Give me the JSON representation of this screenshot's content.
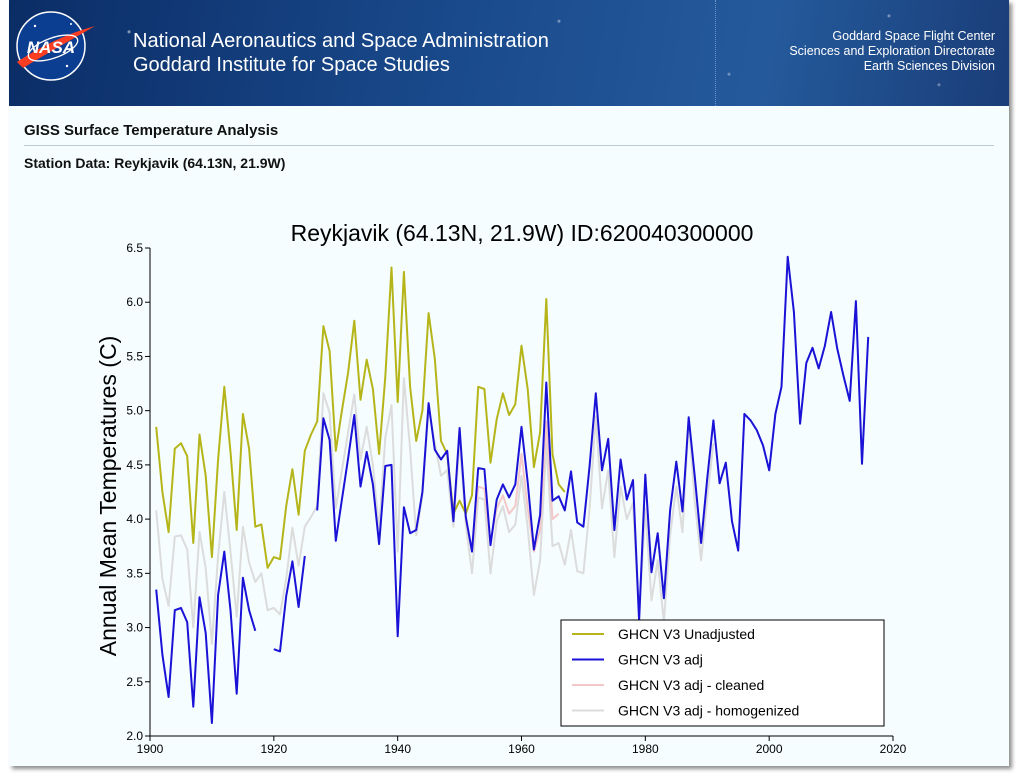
{
  "header": {
    "agency_line1": "National Aeronautics and Space Administration",
    "agency_line2": "Goddard Institute for Space Studies",
    "center_line1": "Goddard Space Flight Center",
    "center_line2": "Sciences and Exploration Directorate",
    "center_line3": "Earth Sciences Division",
    "logo_text": "NASA"
  },
  "page": {
    "title": "GISS Surface Temperature Analysis",
    "station_label": "Station Data: Reykjavik (64.13N, 21.9W)"
  },
  "colors": {
    "unadjusted": "#b5b51a",
    "adj": "#1a12d6",
    "cleaned": "#f4c8c8",
    "homogenized": "#dcdcdc"
  },
  "chart_data": {
    "type": "line",
    "title": "Reykjavik (64.13N, 21.9W) ID:620040300000",
    "ylabel": "Annual Mean Temperatures (C)",
    "xlabel": "",
    "xlim": [
      1900,
      2020
    ],
    "ylim": [
      2.0,
      6.5
    ],
    "xticks": [
      1900,
      1920,
      1940,
      1960,
      1980,
      2000,
      2020
    ],
    "yticks": [
      2.0,
      2.5,
      3.0,
      3.5,
      4.0,
      4.5,
      5.0,
      5.5,
      6.0,
      6.5
    ],
    "xtick_labels": [
      "1900",
      "1920",
      "1940",
      "1960",
      "1980",
      "2000",
      "2020"
    ],
    "ytick_labels": [
      "2.0",
      "2.5",
      "3.0",
      "3.5",
      "4.0",
      "4.5",
      "5.0",
      "5.5",
      "6.0",
      "6.5"
    ],
    "grid": false,
    "legend_position": "bottom-right",
    "series": [
      {
        "name": "GHCN V3 Unadjusted",
        "color": "#b5b51a",
        "x": [
          1901,
          1902,
          1903,
          1904,
          1905,
          1906,
          1907,
          1908,
          1909,
          1910,
          1911,
          1912,
          1913,
          1914,
          1915,
          1916,
          1917,
          1918,
          1919,
          1920,
          1921,
          1922,
          1923,
          1924,
          1925,
          1926,
          1927,
          1928,
          1929,
          1930,
          1931,
          1932,
          1933,
          1934,
          1935,
          1936,
          1937,
          1938,
          1939,
          1940,
          1941,
          1942,
          1943,
          1944,
          1945,
          1946,
          1947,
          1948,
          1949,
          1950,
          1951,
          1952,
          1953,
          1954,
          1955,
          1956,
          1957,
          1958,
          1959,
          1960,
          1961,
          1962,
          1963,
          1964,
          1965,
          1966,
          1967
        ],
        "y": [
          4.85,
          4.25,
          3.88,
          4.65,
          4.7,
          4.58,
          3.78,
          4.78,
          4.4,
          3.65,
          4.55,
          5.22,
          4.62,
          3.9,
          4.97,
          4.65,
          3.93,
          3.95,
          3.55,
          3.65,
          3.63,
          4.12,
          4.46,
          4.04,
          4.63,
          4.78,
          4.9,
          5.78,
          5.55,
          4.63,
          5.0,
          5.35,
          5.83,
          5.1,
          5.47,
          5.2,
          4.6,
          5.31,
          6.32,
          5.08,
          6.28,
          5.22,
          4.72,
          5.0,
          5.9,
          5.48,
          4.72,
          4.6,
          4.05,
          4.17,
          4.05,
          4.22,
          5.22,
          5.2,
          4.52,
          4.92,
          5.16,
          4.96,
          5.06,
          5.6,
          5.2,
          4.48,
          4.8,
          6.03,
          4.6,
          4.32,
          4.25
        ]
      },
      {
        "name": "GHCN V3 adj",
        "color": "#1a12d6",
        "segments": [
          {
            "x": [
              1901,
              1902,
              1903,
              1904,
              1905,
              1906,
              1907,
              1908,
              1909,
              1910,
              1911,
              1912,
              1913,
              1914,
              1915,
              1916,
              1917
            ],
            "y": [
              3.35,
              2.75,
              2.36,
              3.16,
              3.18,
              3.05,
              2.27,
              3.28,
              2.95,
              2.12,
              3.3,
              3.7,
              3.16,
              2.39,
              3.46,
              3.16,
              2.97
            ]
          },
          {
            "x": [
              1920,
              1921,
              1922,
              1923,
              1924,
              1925
            ],
            "y": [
              2.8,
              2.78,
              3.29,
              3.61,
              3.19,
              3.66
            ]
          },
          {
            "x": [
              1927,
              1928,
              1929,
              1930,
              1931,
              1932,
              1933,
              1934,
              1935,
              1936,
              1937,
              1938,
              1939,
              1940,
              1941,
              1942,
              1943,
              1944,
              1945,
              1946,
              1947,
              1948,
              1949,
              1950,
              1951,
              1952,
              1953,
              1954,
              1955,
              1956,
              1957,
              1958,
              1959,
              1960,
              1961,
              1962,
              1963,
              1964,
              1965,
              1966,
              1967,
              1968,
              1969,
              1970,
              1971,
              1972,
              1973,
              1974,
              1975,
              1976,
              1977,
              1978,
              1979,
              1980,
              1981,
              1982,
              1983,
              1984,
              1985,
              1986,
              1987,
              1988,
              1989,
              1990,
              1991,
              1992,
              1993,
              1994,
              1995,
              1996,
              1997,
              1998,
              1999,
              2000,
              2001,
              2002,
              2003,
              2004,
              2005,
              2006,
              2007,
              2008,
              2009,
              2010,
              2011,
              2012,
              2013,
              2014,
              2015,
              2016
            ],
            "y": [
              4.08,
              4.93,
              4.73,
              3.8,
              4.18,
              4.56,
              4.96,
              4.3,
              4.62,
              4.32,
              3.77,
              4.49,
              4.5,
              2.92,
              4.11,
              3.87,
              3.9,
              4.25,
              5.07,
              4.64,
              4.55,
              4.63,
              3.98,
              4.84,
              4.02,
              3.7,
              4.47,
              4.46,
              3.76,
              4.18,
              4.32,
              4.2,
              4.32,
              4.85,
              4.34,
              3.72,
              4.04,
              5.26,
              4.17,
              4.21,
              4.08,
              4.44,
              3.97,
              3.93,
              4.49,
              5.16,
              4.45,
              4.74,
              3.9,
              4.55,
              4.18,
              4.36,
              3.06,
              4.41,
              3.51,
              3.87,
              3.27,
              4.08,
              4.53,
              4.07,
              4.94,
              4.38,
              3.78,
              4.38,
              4.91,
              4.33,
              4.52,
              3.98,
              3.71,
              4.97,
              4.91,
              4.82,
              4.68,
              4.45,
              4.97,
              5.22,
              6.42,
              5.91,
              4.88,
              5.44,
              5.58,
              5.39,
              5.6,
              5.91,
              5.57,
              5.32,
              5.09,
              6.01,
              4.51,
              5.68
            ]
          }
        ]
      },
      {
        "name": "GHCN V3 adj - cleaned",
        "color": "#f4c8c8",
        "x": [
          1951,
          1952,
          1953,
          1954,
          1955,
          1956,
          1957,
          1958,
          1959,
          1960,
          1961,
          1962,
          1963,
          1964,
          1965,
          1966
        ],
        "y": [
          4.0,
          3.72,
          4.3,
          4.28,
          3.78,
          4.1,
          4.22,
          4.05,
          4.12,
          4.6,
          4.1,
          3.7,
          3.9,
          4.9,
          4.0,
          4.05
        ]
      },
      {
        "name": "GHCN V3 adj - homogenized",
        "color": "#dcdcdc",
        "x": [
          1901,
          1902,
          1903,
          1904,
          1905,
          1906,
          1907,
          1908,
          1909,
          1910,
          1911,
          1912,
          1913,
          1914,
          1915,
          1916,
          1917,
          1918,
          1919,
          1920,
          1921,
          1922,
          1923,
          1924,
          1925,
          1926,
          1927,
          1928,
          1929,
          1930,
          1931,
          1932,
          1933,
          1934,
          1935,
          1936,
          1937,
          1938,
          1939,
          1940,
          1941,
          1942,
          1943,
          1944,
          1945,
          1946,
          1947,
          1948,
          1949,
          1950,
          1951,
          1952,
          1953,
          1954,
          1955,
          1956,
          1957,
          1958,
          1959,
          1960,
          1961,
          1962,
          1963,
          1964,
          1965,
          1966,
          1967,
          1968,
          1969,
          1970,
          1971,
          1972,
          1973,
          1974,
          1975,
          1976,
          1977,
          1978,
          1979,
          1980,
          1981,
          1982,
          1983,
          1984,
          1985,
          1986,
          1987,
          1988,
          1989,
          1990,
          1991
        ],
        "y": [
          4.08,
          3.45,
          3.2,
          3.84,
          3.85,
          3.72,
          3.0,
          3.88,
          3.55,
          2.85,
          3.66,
          4.25,
          3.7,
          3.1,
          3.93,
          3.6,
          3.42,
          3.5,
          3.16,
          3.18,
          3.12,
          3.45,
          3.92,
          3.57,
          3.93,
          4.02,
          4.12,
          5.16,
          4.98,
          4.1,
          4.45,
          4.8,
          5.15,
          4.55,
          4.85,
          4.5,
          3.9,
          4.75,
          5.05,
          3.7,
          5.3,
          4.65,
          3.85,
          4.22,
          5.02,
          4.7,
          4.4,
          4.45,
          3.93,
          4.72,
          3.95,
          3.5,
          4.2,
          4.18,
          3.5,
          3.98,
          4.12,
          3.88,
          3.95,
          4.4,
          3.92,
          3.3,
          3.62,
          4.7,
          3.75,
          3.78,
          3.58,
          3.9,
          3.52,
          3.5,
          4.1,
          4.95,
          4.1,
          4.45,
          3.65,
          4.3,
          4.0,
          4.15,
          3.1,
          4.1,
          3.25,
          3.62,
          3.05,
          3.85,
          4.3,
          3.88,
          4.9,
          4.15,
          3.62,
          4.2,
          4.7
        ]
      }
    ]
  }
}
